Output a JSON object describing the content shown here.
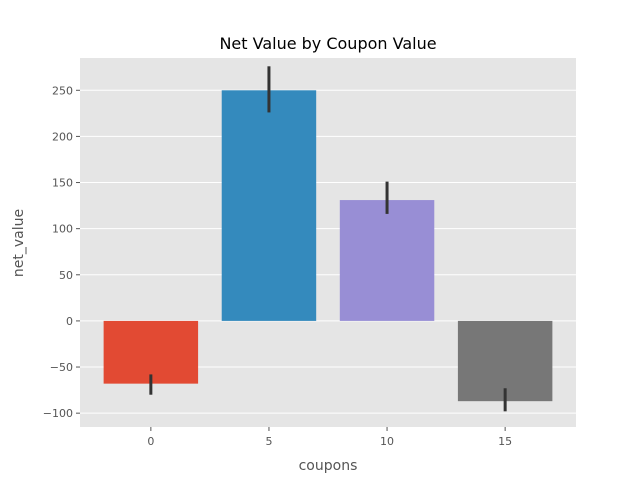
{
  "chart_data": {
    "type": "bar",
    "title": "Net Value by Coupon Value",
    "xlabel": "coupons",
    "ylabel": "net_value",
    "categories": [
      "0",
      "5",
      "10",
      "15"
    ],
    "values": [
      -68,
      250,
      131,
      -87
    ],
    "error_bars": [
      [
        -80,
        -58
      ],
      [
        226,
        276
      ],
      [
        116,
        151
      ],
      [
        -98,
        -73
      ]
    ],
    "ylim": [
      -115,
      285
    ],
    "yticks": [
      -100,
      -50,
      0,
      50,
      100,
      150,
      200,
      250
    ],
    "ytick_labels": [
      "−100",
      "−50",
      "0",
      "50",
      "100",
      "150",
      "200",
      "250"
    ],
    "colors": [
      "#E24A33",
      "#348ABD",
      "#988ED5",
      "#777777"
    ],
    "error_bar_color": "#333333",
    "background_color": "#E5E5E5",
    "grid": true,
    "legend": "none"
  }
}
